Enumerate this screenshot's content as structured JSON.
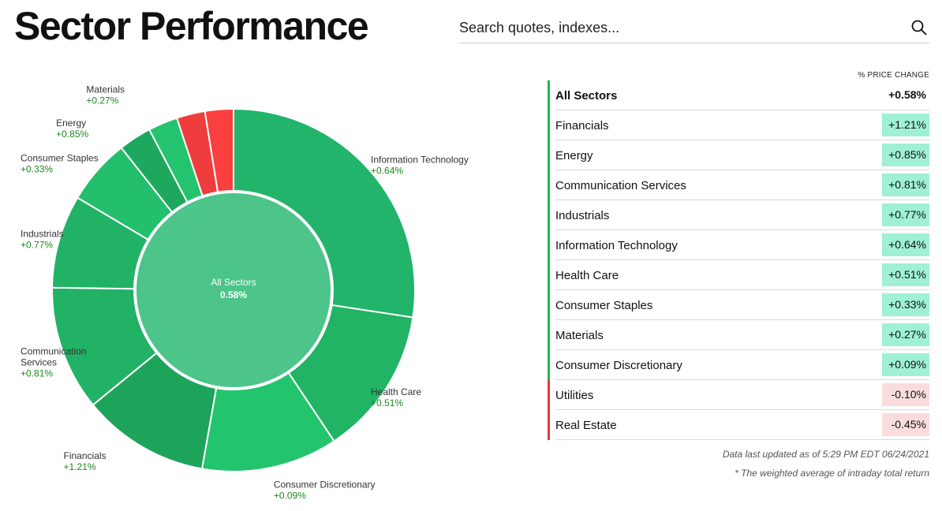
{
  "page": {
    "title": "Sector Performance"
  },
  "search": {
    "placeholder": "Search quotes, indexes..."
  },
  "icons": {
    "search": "search-icon"
  },
  "colors": {
    "positive_bar": "#1db954",
    "negative_bar": "#e8393c",
    "positive_bg": "#9ff0d4",
    "negative_bg": "#fbdcdc",
    "gain_text": "#1a8a1a"
  },
  "table": {
    "column_header": "% PRICE CHANGE",
    "rows": [
      {
        "name": "All Sectors",
        "change": "+0.58%",
        "kind": "all"
      },
      {
        "name": "Financials",
        "change": "+1.21%",
        "kind": "pos"
      },
      {
        "name": "Energy",
        "change": "+0.85%",
        "kind": "pos"
      },
      {
        "name": "Communication Services",
        "change": "+0.81%",
        "kind": "pos"
      },
      {
        "name": "Industrials",
        "change": "+0.77%",
        "kind": "pos"
      },
      {
        "name": "Information Technology",
        "change": "+0.64%",
        "kind": "pos"
      },
      {
        "name": "Health Care",
        "change": "+0.51%",
        "kind": "pos"
      },
      {
        "name": "Consumer Staples",
        "change": "+0.33%",
        "kind": "pos"
      },
      {
        "name": "Materials",
        "change": "+0.27%",
        "kind": "pos"
      },
      {
        "name": "Consumer Discretionary",
        "change": "+0.09%",
        "kind": "pos"
      },
      {
        "name": "Utilities",
        "change": "-0.10%",
        "kind": "neg"
      },
      {
        "name": "Real Estate",
        "change": "-0.45%",
        "kind": "neg"
      }
    ]
  },
  "footnotes": {
    "updated": "Data last updated as of 5:29 PM EDT 06/24/2021",
    "weighted": "* The weighted average of intraday total return"
  },
  "chart_data": {
    "type": "pie",
    "center": {
      "label": "All Sectors",
      "value": "0.58%"
    },
    "slices": [
      {
        "name": "Information Technology",
        "label": "+0.64%",
        "value": 0.64,
        "share": 0.271,
        "color": "#22b46a"
      },
      {
        "name": "Health Care",
        "label": "+0.51%",
        "value": 0.51,
        "share": 0.131,
        "color": "#20b464"
      },
      {
        "name": "Consumer Discretionary",
        "label": "+0.09%",
        "value": 0.09,
        "share": 0.12,
        "color": "#23c46e"
      },
      {
        "name": "Financials",
        "label": "+1.21%",
        "value": 1.21,
        "share": 0.112,
        "color": "#1ea35a"
      },
      {
        "name": "Communication Services",
        "label": "+0.81%",
        "value": 0.81,
        "share": 0.11,
        "color": "#22b265"
      },
      {
        "name": "Industrials",
        "label": "+0.77%",
        "value": 0.77,
        "share": 0.082,
        "color": "#22b265"
      },
      {
        "name": "Consumer Staples",
        "label": "+0.33%",
        "value": 0.33,
        "share": 0.058,
        "color": "#23bf6c"
      },
      {
        "name": "Energy",
        "label": "+0.85%",
        "value": 0.85,
        "share": 0.029,
        "color": "#1ea85e"
      },
      {
        "name": "Materials",
        "label": "+0.27%",
        "value": 0.27,
        "share": 0.026,
        "color": "#24c46f"
      },
      {
        "name": "Utilities",
        "label": "-0.10%",
        "value": -0.1,
        "share": 0.025,
        "color": "#ef3d3d"
      },
      {
        "name": "Real Estate",
        "label": "-0.45%",
        "value": -0.45,
        "share": 0.025,
        "color": "#fb3f3f"
      }
    ],
    "labeled_slices": [
      "Information Technology",
      "Health Care",
      "Consumer Discretionary",
      "Financials",
      "Communication Services",
      "Industrials",
      "Consumer Staples",
      "Energy",
      "Materials"
    ]
  }
}
